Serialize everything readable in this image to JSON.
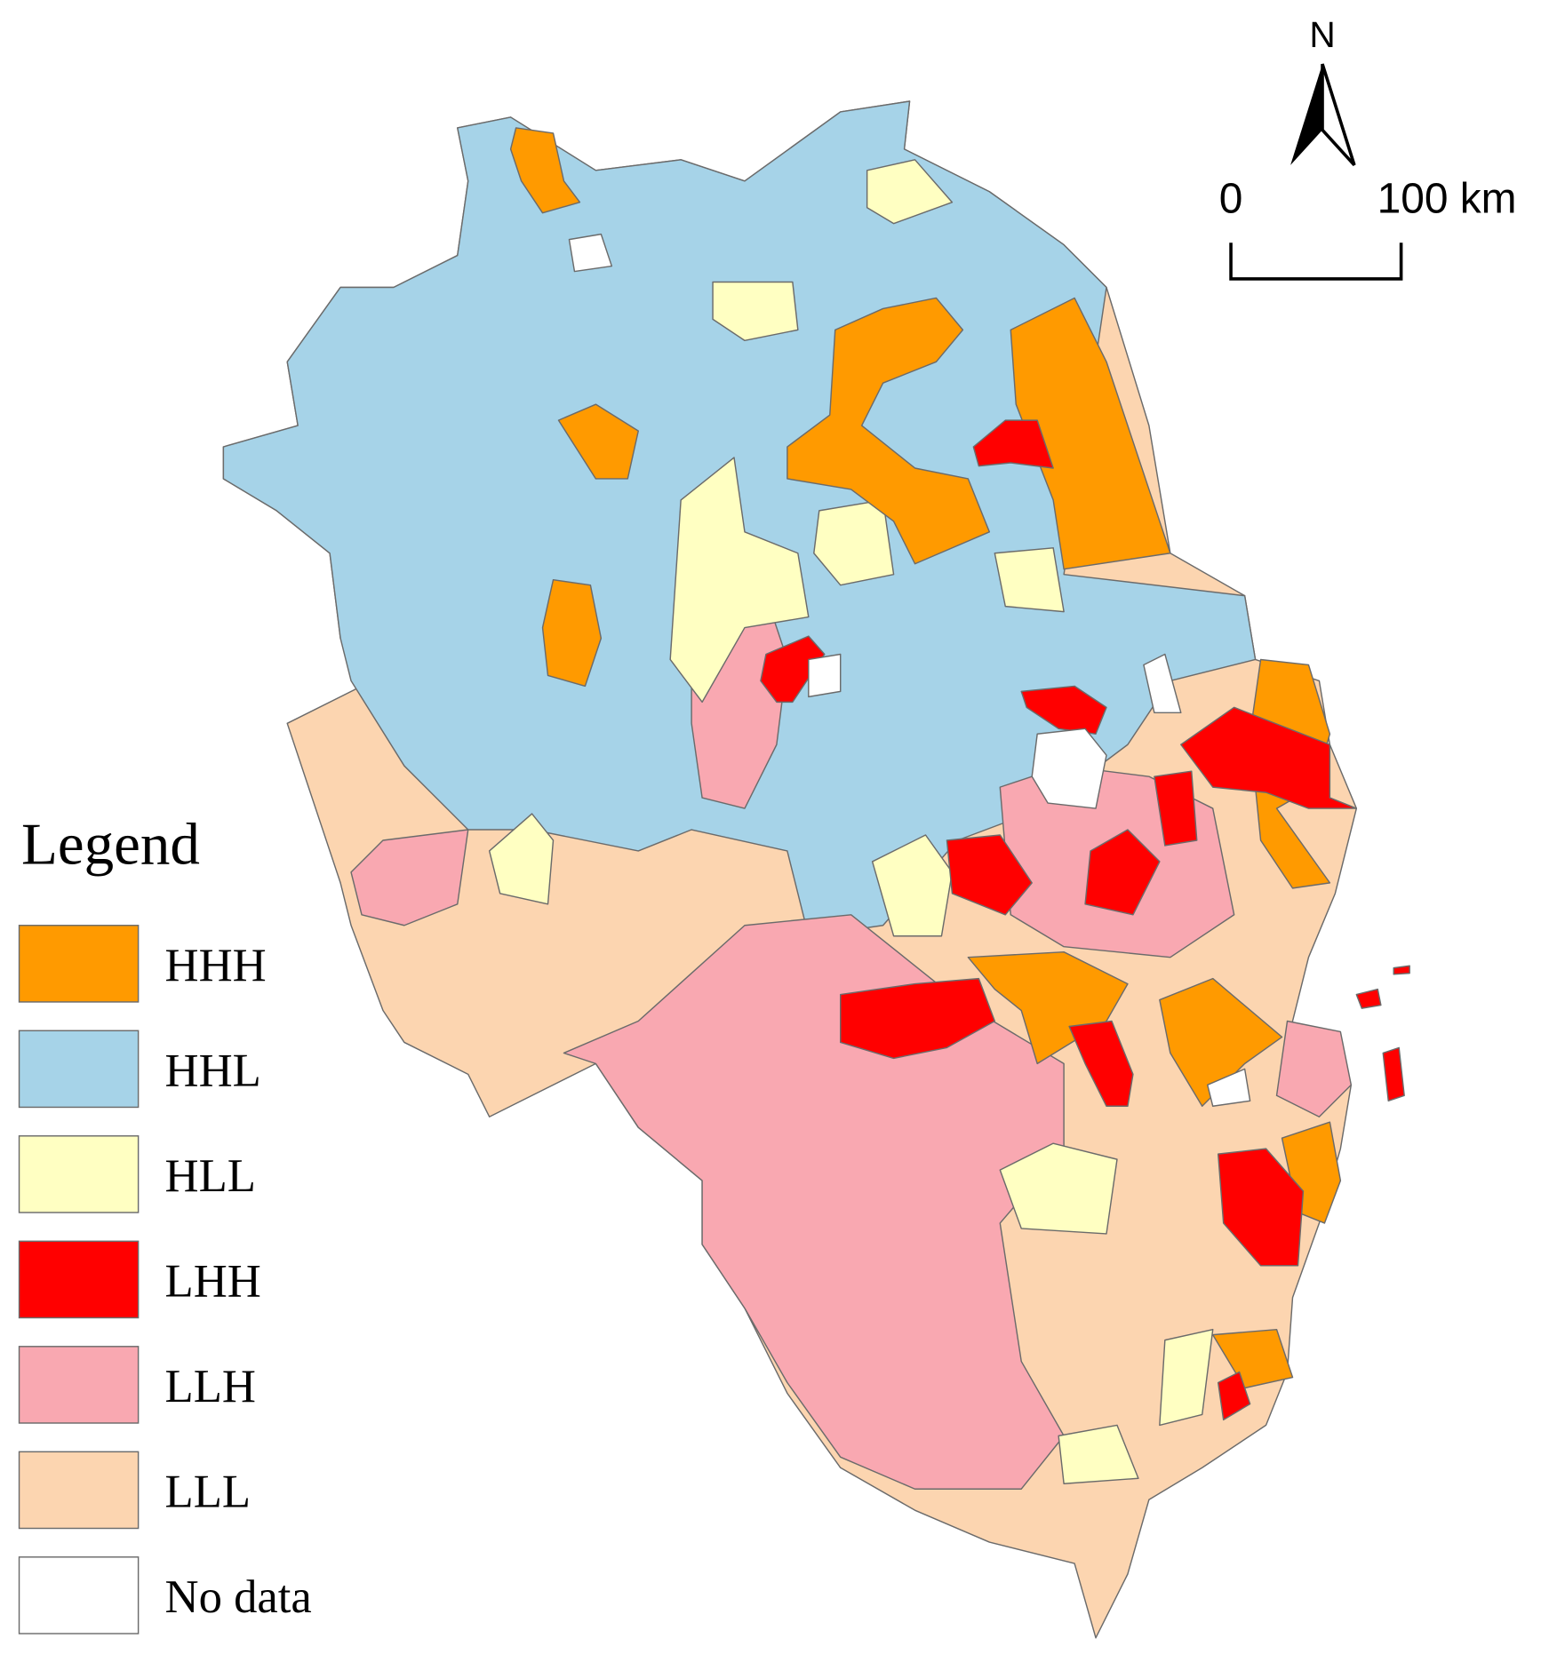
{
  "legend": {
    "title": "Legend",
    "items": [
      {
        "label": "HHH",
        "color": "#ff9a00"
      },
      {
        "label": "HHL",
        "color": "#a6d3e8"
      },
      {
        "label": "HLL",
        "color": "#ffffc2"
      },
      {
        "label": "LHH",
        "color": "#ff0000"
      },
      {
        "label": "LLH",
        "color": "#f9a8b1"
      },
      {
        "label": "LLL",
        "color": "#fcd5b0"
      },
      {
        "label": "No data",
        "color": "#ffffff"
      }
    ]
  },
  "north_arrow": {
    "label": "N"
  },
  "scale_bar": {
    "labels": [
      "0",
      "100 km"
    ]
  }
}
